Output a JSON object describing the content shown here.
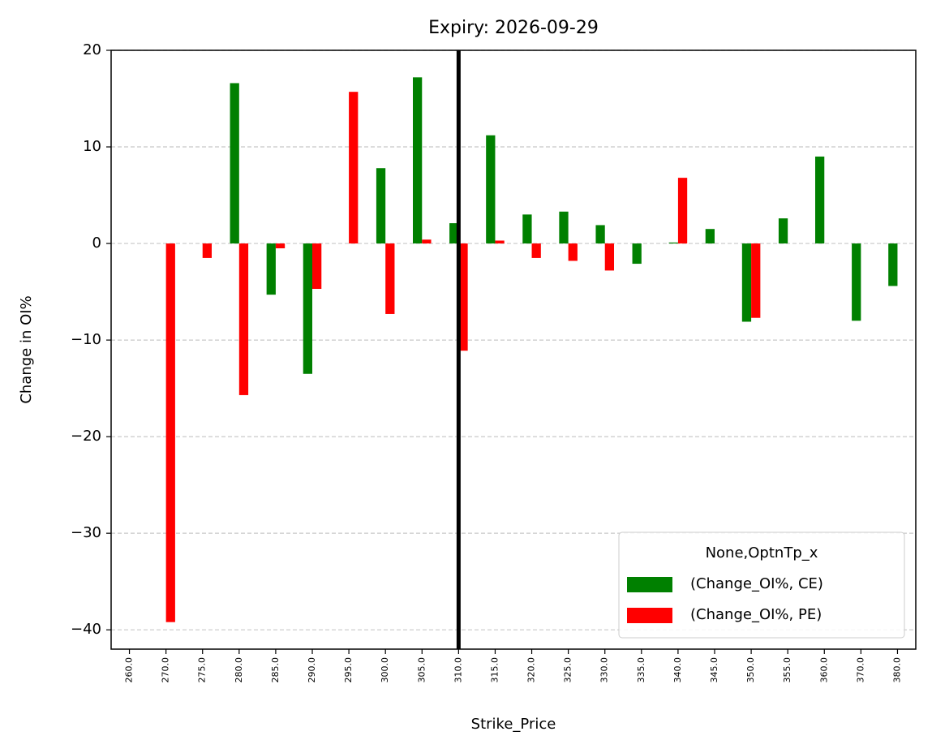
{
  "chart_data": {
    "type": "bar",
    "title": "Expiry: 2026-09-29",
    "x_label": "Strike_Price",
    "y_label": "Change in OI%",
    "categories": [
      "260.0",
      "270.0",
      "275.0",
      "280.0",
      "285.0",
      "290.0",
      "295.0",
      "300.0",
      "305.0",
      "310.0",
      "315.0",
      "320.0",
      "325.0",
      "330.0",
      "335.0",
      "340.0",
      "345.0",
      "350.0",
      "355.0",
      "360.0",
      "370.0",
      "380.0"
    ],
    "series": [
      {
        "name": "(Change_OI%, CE)",
        "color": "#008000",
        "values": [
          null,
          null,
          null,
          16.6,
          -5.3,
          -13.5,
          null,
          7.8,
          17.2,
          2.1,
          11.2,
          3.0,
          3.3,
          1.9,
          -2.1,
          0.1,
          1.5,
          -8.1,
          2.6,
          9.0,
          -8.0,
          -4.4
        ]
      },
      {
        "name": "(Change_OI%, PE)",
        "color": "#ff0000",
        "values": [
          null,
          -39.2,
          -1.5,
          -15.7,
          -0.5,
          -4.7,
          15.7,
          -7.3,
          0.4,
          -11.1,
          0.3,
          -1.5,
          -1.8,
          -2.8,
          null,
          6.8,
          null,
          -7.7,
          null,
          null,
          null,
          null
        ]
      }
    ],
    "legend_title": "None,OptnTp_x",
    "legend_position": "lower right",
    "vline": "310.0",
    "ylim": [
      -42,
      20
    ],
    "yticks": [
      {
        "value": -40,
        "label": "−40"
      },
      {
        "value": -30,
        "label": "−30"
      },
      {
        "value": -20,
        "label": "−20"
      },
      {
        "value": -10,
        "label": "−10"
      },
      0,
      10,
      20
    ],
    "grid": true
  }
}
